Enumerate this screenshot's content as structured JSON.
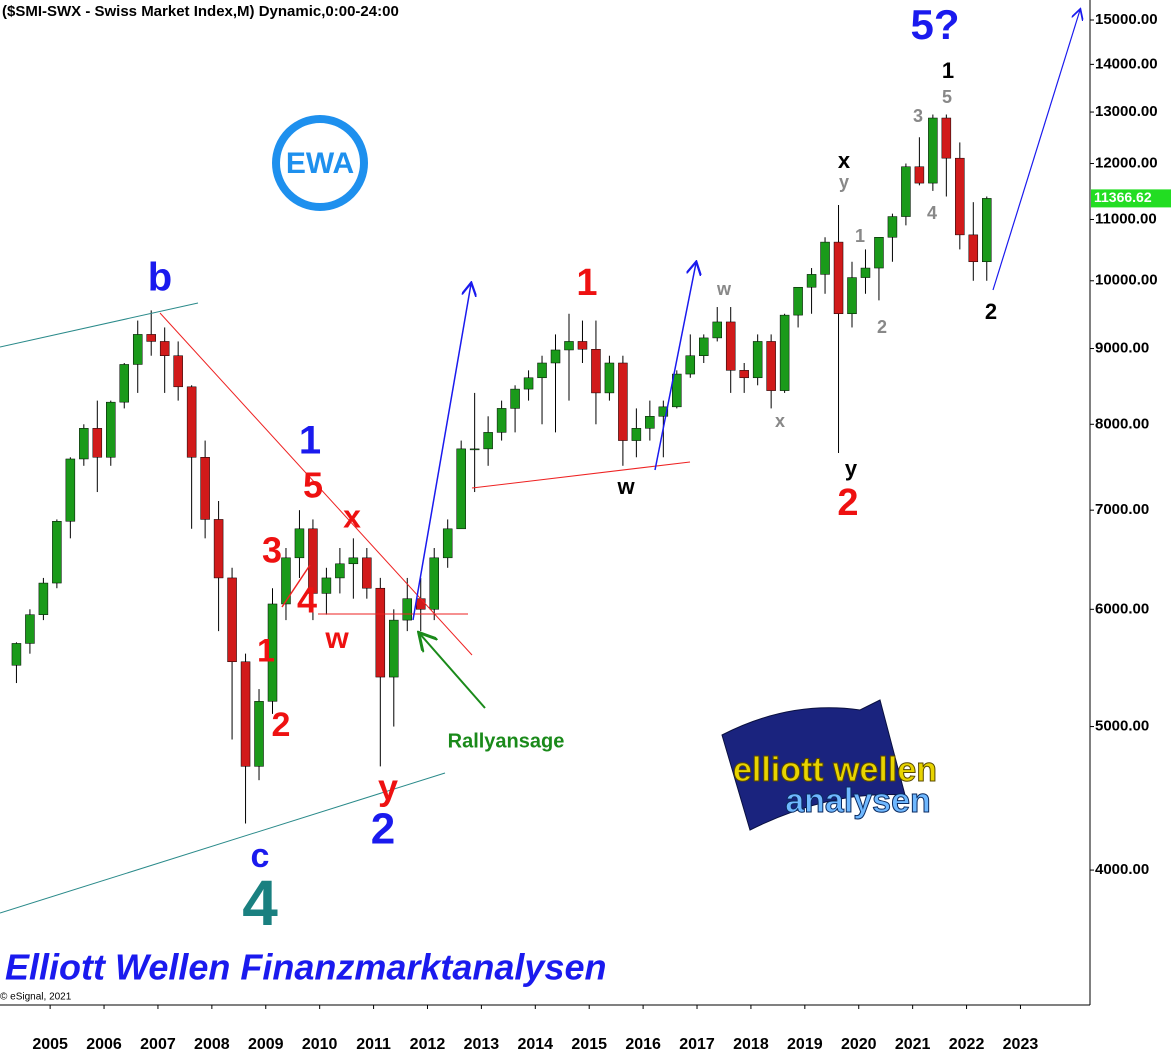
{
  "chart_data": {
    "type": "candlestick",
    "title": "($SMI-SWX - Swiss Market Index,M) Dynamic,0:00-24:00",
    "log_scale": true,
    "up_color": "#1a9a1a",
    "down_color": "#d11a1a",
    "wick_color": "#000000",
    "xlim": [
      2004.57,
      2024.79
    ],
    "ylim": [
      3243,
      15474
    ],
    "xticks": [
      {
        "value": 2005.5,
        "label": "2005"
      },
      {
        "value": 2006.5,
        "label": "2006"
      },
      {
        "value": 2007.5,
        "label": "2007"
      },
      {
        "value": 2008.5,
        "label": "2008"
      },
      {
        "value": 2009.5,
        "label": "2009"
      },
      {
        "value": 2010.5,
        "label": "2010"
      },
      {
        "value": 2011.5,
        "label": "2011"
      },
      {
        "value": 2012.5,
        "label": "2012"
      },
      {
        "value": 2013.5,
        "label": "2013"
      },
      {
        "value": 2014.5,
        "label": "2014"
      },
      {
        "value": 2015.5,
        "label": "2015"
      },
      {
        "value": 2016.5,
        "label": "2016"
      },
      {
        "value": 2017.5,
        "label": "2017"
      },
      {
        "value": 2018.5,
        "label": "2018"
      },
      {
        "value": 2019.5,
        "label": "2019"
      },
      {
        "value": 2020.5,
        "label": "2020"
      },
      {
        "value": 2021.5,
        "label": "2021"
      },
      {
        "value": 2022.5,
        "label": "2022"
      },
      {
        "value": 2023.5,
        "label": "2023"
      }
    ],
    "yticks": [
      {
        "value": 4000,
        "label": "4000.00"
      },
      {
        "value": 5000,
        "label": "5000.00"
      },
      {
        "value": 6000,
        "label": "6000.00"
      },
      {
        "value": 7000,
        "label": "7000.00"
      },
      {
        "value": 8000,
        "label": "8000.00"
      },
      {
        "value": 9000,
        "label": "9000.00"
      },
      {
        "value": 10000,
        "label": "10000.00"
      },
      {
        "value": 11000,
        "label": "11000.00"
      },
      {
        "value": 12000,
        "label": "12000.00"
      },
      {
        "value": 13000,
        "label": "13000.00"
      },
      {
        "value": 14000,
        "label": "14000.00"
      },
      {
        "value": 15000,
        "label": "15000.00"
      }
    ],
    "x": [
      2004.75,
      2005,
      2005.25,
      2005.5,
      2005.75,
      2006,
      2006.25,
      2006.5,
      2006.75,
      2007,
      2007.25,
      2007.5,
      2007.75,
      2008,
      2008.25,
      2008.5,
      2008.75,
      2009,
      2009.25,
      2009.5,
      2009.75,
      2010,
      2010.25,
      2010.5,
      2010.75,
      2011,
      2011.25,
      2011.5,
      2011.75,
      2012,
      2012.25,
      2012.5,
      2012.75,
      2013,
      2013.25,
      2013.5,
      2013.75,
      2014,
      2014.25,
      2014.5,
      2014.75,
      2015,
      2015.25,
      2015.5,
      2015.75,
      2016,
      2016.25,
      2016.5,
      2016.75,
      2017,
      2017.25,
      2017.5,
      2017.75,
      2018,
      2018.25,
      2018.5,
      2018.75,
      2019,
      2019.25,
      2019.5,
      2019.75,
      2020,
      2020.25,
      2020.5,
      2020.75,
      2021,
      2021.25,
      2021.5,
      2021.75,
      2022,
      2022.25,
      2022.5,
      2022.75
    ],
    "open": [
      5500,
      5690,
      5950,
      6250,
      6880,
      7580,
      7950,
      7600,
      8280,
      8780,
      9200,
      9100,
      8900,
      8480,
      7600,
      6900,
      6300,
      5530,
      4700,
      5200,
      6050,
      6500,
      6800,
      6150,
      6300,
      6440,
      6500,
      6200,
      5400,
      5900,
      6100,
      6000,
      6500,
      6800,
      7700,
      7700,
      7900,
      8200,
      8450,
      8600,
      8800,
      8980,
      9100,
      8990,
      8400,
      8800,
      7800,
      7950,
      8100,
      8220,
      8650,
      8900,
      9150,
      9380,
      8700,
      8600,
      9100,
      8430,
      9480,
      9900,
      10100,
      10620,
      9500,
      10050,
      10200,
      10700,
      11050,
      11940,
      11640,
      12880,
      12100,
      10740,
      10300
    ],
    "high": [
      5700,
      6000,
      6300,
      6900,
      7600,
      8000,
      8300,
      8300,
      8800,
      9400,
      9550,
      9300,
      9100,
      8500,
      7800,
      7100,
      6400,
      5600,
      5300,
      6200,
      6600,
      7000,
      6900,
      6400,
      6600,
      6700,
      6600,
      6300,
      6000,
      6300,
      6300,
      6600,
      6900,
      7800,
      8400,
      8100,
      8300,
      8500,
      8700,
      8900,
      9200,
      9500,
      9400,
      9400,
      8900,
      8900,
      8200,
      8300,
      8300,
      8700,
      9200,
      9200,
      9600,
      9600,
      8800,
      9200,
      9200,
      9500,
      9900,
      10200,
      10700,
      11250,
      10300,
      10500,
      10700,
      11100,
      12000,
      12500,
      12950,
      12950,
      12400,
      11300,
      11400
    ],
    "low": [
      5350,
      5600,
      5900,
      6200,
      6700,
      7500,
      7200,
      7500,
      8200,
      8400,
      8900,
      8400,
      8300,
      6800,
      6700,
      5800,
      4900,
      4300,
      4600,
      5100,
      5900,
      6300,
      5900,
      5950,
      6150,
      6100,
      6100,
      4700,
      5000,
      5800,
      5800,
      5900,
      6400,
      6800,
      7200,
      7500,
      7800,
      7900,
      8300,
      8000,
      7900,
      8300,
      8800,
      8000,
      8300,
      7500,
      7600,
      7800,
      7600,
      8200,
      8600,
      8800,
      9100,
      8400,
      8400,
      8500,
      8200,
      8400,
      9300,
      9500,
      9800,
      7650,
      9300,
      9800,
      9700,
      10300,
      10900,
      11600,
      11500,
      11400,
      10500,
      10000,
      10000
    ],
    "close": [
      5690,
      5950,
      6250,
      6880,
      7580,
      7950,
      7600,
      8280,
      8780,
      9200,
      9100,
      8900,
      8480,
      7600,
      6900,
      6300,
      5530,
      4700,
      5200,
      6050,
      6500,
      6800,
      6150,
      6300,
      6440,
      6500,
      6200,
      5400,
      5900,
      6100,
      6000,
      6500,
      6800,
      7700,
      7700,
      7900,
      8200,
      8450,
      8600,
      8800,
      8980,
      9100,
      8990,
      8400,
      8800,
      7800,
      7950,
      8100,
      8220,
      8650,
      8900,
      9150,
      9380,
      8700,
      8600,
      9100,
      8430,
      9480,
      9900,
      10100,
      10620,
      9500,
      10050,
      10200,
      10700,
      11050,
      11940,
      11640,
      12880,
      12100,
      10740,
      10300,
      11366.62
    ],
    "last_price_color": "#22dd22",
    "annotations": [
      {
        "text": "5?",
        "color": "#1a1aee"
      },
      {
        "text": "1",
        "color": "#000000"
      },
      {
        "text": "5",
        "color": "#888888"
      },
      {
        "text": "3",
        "color": "#888888"
      },
      {
        "text": "x",
        "color": "#000000"
      },
      {
        "text": "y",
        "color": "#888888"
      },
      {
        "text": "1",
        "color": "#888888"
      },
      {
        "text": "4",
        "color": "#888888"
      },
      {
        "text": "2",
        "color": "#888888"
      },
      {
        "text": "2",
        "color": "#000000"
      },
      {
        "text": "b",
        "color": "#1a1aee"
      },
      {
        "text": "1",
        "color": "#ee1111"
      },
      {
        "text": "w",
        "color": "#888888"
      },
      {
        "text": "x",
        "color": "#888888"
      },
      {
        "text": "w",
        "color": "#000000"
      },
      {
        "text": "y",
        "color": "#000000"
      },
      {
        "text": "2",
        "color": "#ee1111"
      },
      {
        "text": "1",
        "color": "#1a1aee"
      },
      {
        "text": "5",
        "color": "#ee1111"
      },
      {
        "text": "x",
        "color": "#ee1111"
      },
      {
        "text": "3",
        "color": "#ee1111"
      },
      {
        "text": "4",
        "color": "#ee1111"
      },
      {
        "text": "w",
        "color": "#ee1111"
      },
      {
        "text": "1",
        "color": "#ee1111"
      },
      {
        "text": "2",
        "color": "#ee1111"
      },
      {
        "text": "y",
        "color": "#ee1111"
      },
      {
        "text": "2",
        "color": "#1a1aee"
      },
      {
        "text": "c",
        "color": "#1a1aee"
      },
      {
        "text": "4",
        "color": "#1a8080"
      },
      {
        "text": "Rallyansage",
        "color": "#1a8a1a"
      }
    ],
    "footer": "Elliott Wellen Finanzmarktanalysen",
    "copyright": "© eSignal, 2021",
    "logo_small": "EWA",
    "logo_top": "elliott wellen",
    "logo_bottom": "analysen"
  }
}
